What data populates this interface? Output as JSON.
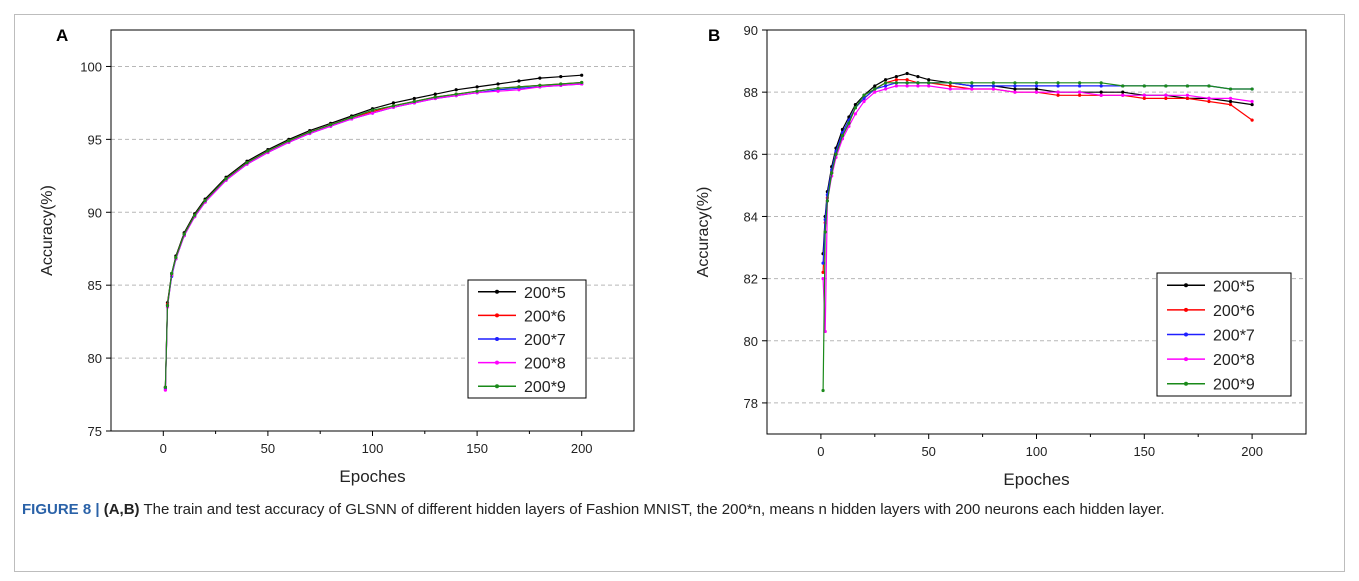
{
  "colors": {
    "grid": "#b7b7b7",
    "caption_label": "#2a62a8"
  },
  "series_style": [
    {
      "color": "#000000"
    },
    {
      "color": "#ff0000"
    },
    {
      "color": "#1f1fff"
    },
    {
      "color": "#ff00ff"
    },
    {
      "color": "#1a8a1a"
    }
  ],
  "caption": {
    "label": "FIGURE 8 | ",
    "panels": "(A,B)",
    "text": " The train and test accuracy of GLSNN of different hidden layers of Fashion MNIST, the 200*n, means n hidden layers with 200 neurons each hidden layer."
  },
  "chart_data": [
    {
      "type": "line",
      "panel_label": "A",
      "xlabel": "Epoches",
      "ylabel": "Accuracy(%)",
      "xlim": [
        -25,
        225
      ],
      "ylim": [
        75,
        102.5
      ],
      "xticks": [
        0,
        50,
        100,
        150,
        200
      ],
      "yticks": [
        75,
        80,
        85,
        90,
        95,
        100
      ],
      "grid": "horizontal dashed",
      "legend_position": "bottom-right",
      "series": [
        {
          "name": "200*5",
          "x": [
            1,
            2,
            4,
            6,
            10,
            15,
            20,
            30,
            40,
            50,
            60,
            70,
            80,
            90,
            100,
            110,
            120,
            130,
            140,
            150,
            160,
            170,
            180,
            190,
            200
          ],
          "y": [
            78.0,
            83.8,
            85.8,
            87.0,
            88.6,
            89.9,
            90.9,
            92.4,
            93.5,
            94.3,
            95.0,
            95.6,
            96.1,
            96.6,
            97.1,
            97.5,
            97.8,
            98.1,
            98.4,
            98.6,
            98.8,
            99.0,
            99.2,
            99.3,
            99.4
          ]
        },
        {
          "name": "200*6",
          "x": [
            1,
            2,
            4,
            6,
            10,
            15,
            20,
            30,
            40,
            50,
            60,
            70,
            80,
            90,
            100,
            110,
            120,
            130,
            140,
            150,
            160,
            170,
            180,
            190,
            200
          ],
          "y": [
            78.0,
            83.7,
            85.7,
            86.9,
            88.5,
            89.8,
            90.8,
            92.3,
            93.4,
            94.2,
            94.9,
            95.5,
            96.0,
            96.5,
            96.9,
            97.3,
            97.6,
            97.9,
            98.1,
            98.3,
            98.5,
            98.6,
            98.7,
            98.8,
            98.9
          ]
        },
        {
          "name": "200*7",
          "x": [
            1,
            2,
            4,
            6,
            10,
            15,
            20,
            30,
            40,
            50,
            60,
            70,
            80,
            90,
            100,
            110,
            120,
            130,
            140,
            150,
            160,
            170,
            180,
            190,
            200
          ],
          "y": [
            77.9,
            83.6,
            85.6,
            86.8,
            88.4,
            89.7,
            90.7,
            92.2,
            93.3,
            94.1,
            94.8,
            95.4,
            95.9,
            96.4,
            96.8,
            97.2,
            97.5,
            97.8,
            98.0,
            98.2,
            98.4,
            98.5,
            98.6,
            98.7,
            98.8
          ]
        },
        {
          "name": "200*8",
          "x": [
            1,
            2,
            4,
            6,
            10,
            15,
            20,
            30,
            40,
            50,
            60,
            70,
            80,
            90,
            100,
            110,
            120,
            130,
            140,
            150,
            160,
            170,
            180,
            190,
            200
          ],
          "y": [
            77.8,
            83.5,
            85.7,
            86.8,
            88.4,
            89.7,
            90.7,
            92.2,
            93.3,
            94.1,
            94.8,
            95.4,
            95.9,
            96.4,
            96.8,
            97.2,
            97.5,
            97.8,
            98.0,
            98.2,
            98.3,
            98.4,
            98.6,
            98.7,
            98.8
          ]
        },
        {
          "name": "200*9",
          "x": [
            1,
            2,
            4,
            6,
            10,
            15,
            20,
            30,
            40,
            50,
            60,
            70,
            80,
            90,
            100,
            110,
            120,
            130,
            140,
            150,
            160,
            170,
            180,
            190,
            200
          ],
          "y": [
            78.0,
            83.6,
            85.8,
            86.9,
            88.5,
            89.8,
            90.8,
            92.3,
            93.4,
            94.2,
            94.9,
            95.5,
            96.0,
            96.5,
            97.0,
            97.3,
            97.6,
            97.9,
            98.1,
            98.3,
            98.5,
            98.6,
            98.7,
            98.8,
            98.9
          ]
        }
      ]
    },
    {
      "type": "line",
      "panel_label": "B",
      "xlabel": "Epoches",
      "ylabel": "Accuracy(%)",
      "xlim": [
        -25,
        225
      ],
      "ylim": [
        77,
        90
      ],
      "xticks": [
        0,
        50,
        100,
        150,
        200
      ],
      "yticks": [
        78,
        80,
        82,
        84,
        86,
        88,
        90
      ],
      "grid": "horizontal dashed",
      "legend_position": "bottom-right",
      "series": [
        {
          "name": "200*5",
          "x": [
            1,
            2,
            3,
            5,
            7,
            10,
            13,
            16,
            20,
            25,
            30,
            35,
            40,
            45,
            50,
            60,
            70,
            80,
            90,
            100,
            110,
            120,
            130,
            140,
            150,
            160,
            170,
            180,
            190,
            200
          ],
          "y": [
            82.8,
            84.0,
            84.8,
            85.6,
            86.2,
            86.8,
            87.2,
            87.6,
            87.9,
            88.2,
            88.4,
            88.5,
            88.6,
            88.5,
            88.4,
            88.3,
            88.2,
            88.2,
            88.1,
            88.1,
            88.0,
            88.0,
            88.0,
            88.0,
            87.9,
            87.9,
            87.8,
            87.8,
            87.7,
            87.6
          ]
        },
        {
          "name": "200*6",
          "x": [
            1,
            2,
            3,
            5,
            7,
            10,
            13,
            16,
            20,
            25,
            30,
            35,
            40,
            45,
            50,
            60,
            70,
            80,
            90,
            100,
            110,
            120,
            130,
            140,
            150,
            160,
            170,
            180,
            190,
            200
          ],
          "y": [
            82.2,
            83.8,
            84.6,
            85.4,
            86.0,
            86.6,
            87.0,
            87.5,
            87.8,
            88.1,
            88.3,
            88.4,
            88.4,
            88.3,
            88.3,
            88.2,
            88.1,
            88.1,
            88.0,
            88.0,
            87.9,
            87.9,
            87.9,
            87.9,
            87.8,
            87.8,
            87.8,
            87.7,
            87.6,
            87.1
          ]
        },
        {
          "name": "200*7",
          "x": [
            1,
            2,
            3,
            5,
            7,
            10,
            13,
            16,
            20,
            25,
            30,
            35,
            40,
            45,
            50,
            60,
            70,
            80,
            90,
            100,
            110,
            120,
            130,
            140,
            150,
            160,
            170,
            180,
            190,
            200
          ],
          "y": [
            82.5,
            83.9,
            84.7,
            85.5,
            86.1,
            86.7,
            87.1,
            87.5,
            87.8,
            88.1,
            88.2,
            88.3,
            88.3,
            88.3,
            88.3,
            88.3,
            88.2,
            88.2,
            88.2,
            88.2,
            88.2,
            88.2,
            88.2,
            88.2,
            88.2,
            88.2,
            88.2,
            88.2,
            88.1,
            88.1
          ]
        },
        {
          "name": "200*8",
          "x": [
            1,
            2,
            3,
            5,
            7,
            10,
            13,
            16,
            20,
            25,
            30,
            35,
            40,
            45,
            50,
            60,
            70,
            80,
            90,
            100,
            110,
            120,
            130,
            140,
            150,
            160,
            170,
            180,
            190,
            200
          ],
          "y": [
            82.0,
            80.3,
            84.5,
            85.3,
            85.9,
            86.5,
            86.9,
            87.3,
            87.7,
            88.0,
            88.1,
            88.2,
            88.2,
            88.2,
            88.2,
            88.1,
            88.1,
            88.1,
            88.0,
            88.0,
            88.0,
            88.0,
            87.9,
            87.9,
            87.9,
            87.9,
            87.9,
            87.8,
            87.8,
            87.7
          ]
        },
        {
          "name": "200*9",
          "x": [
            1,
            2,
            3,
            5,
            7,
            10,
            13,
            16,
            20,
            25,
            30,
            35,
            40,
            45,
            50,
            60,
            70,
            80,
            90,
            100,
            110,
            120,
            130,
            140,
            150,
            160,
            170,
            180,
            190,
            200
          ],
          "y": [
            78.4,
            83.5,
            84.5,
            85.4,
            86.0,
            86.6,
            87.0,
            87.5,
            87.9,
            88.1,
            88.3,
            88.3,
            88.3,
            88.3,
            88.3,
            88.3,
            88.3,
            88.3,
            88.3,
            88.3,
            88.3,
            88.3,
            88.3,
            88.2,
            88.2,
            88.2,
            88.2,
            88.2,
            88.1,
            88.1
          ]
        }
      ]
    }
  ]
}
